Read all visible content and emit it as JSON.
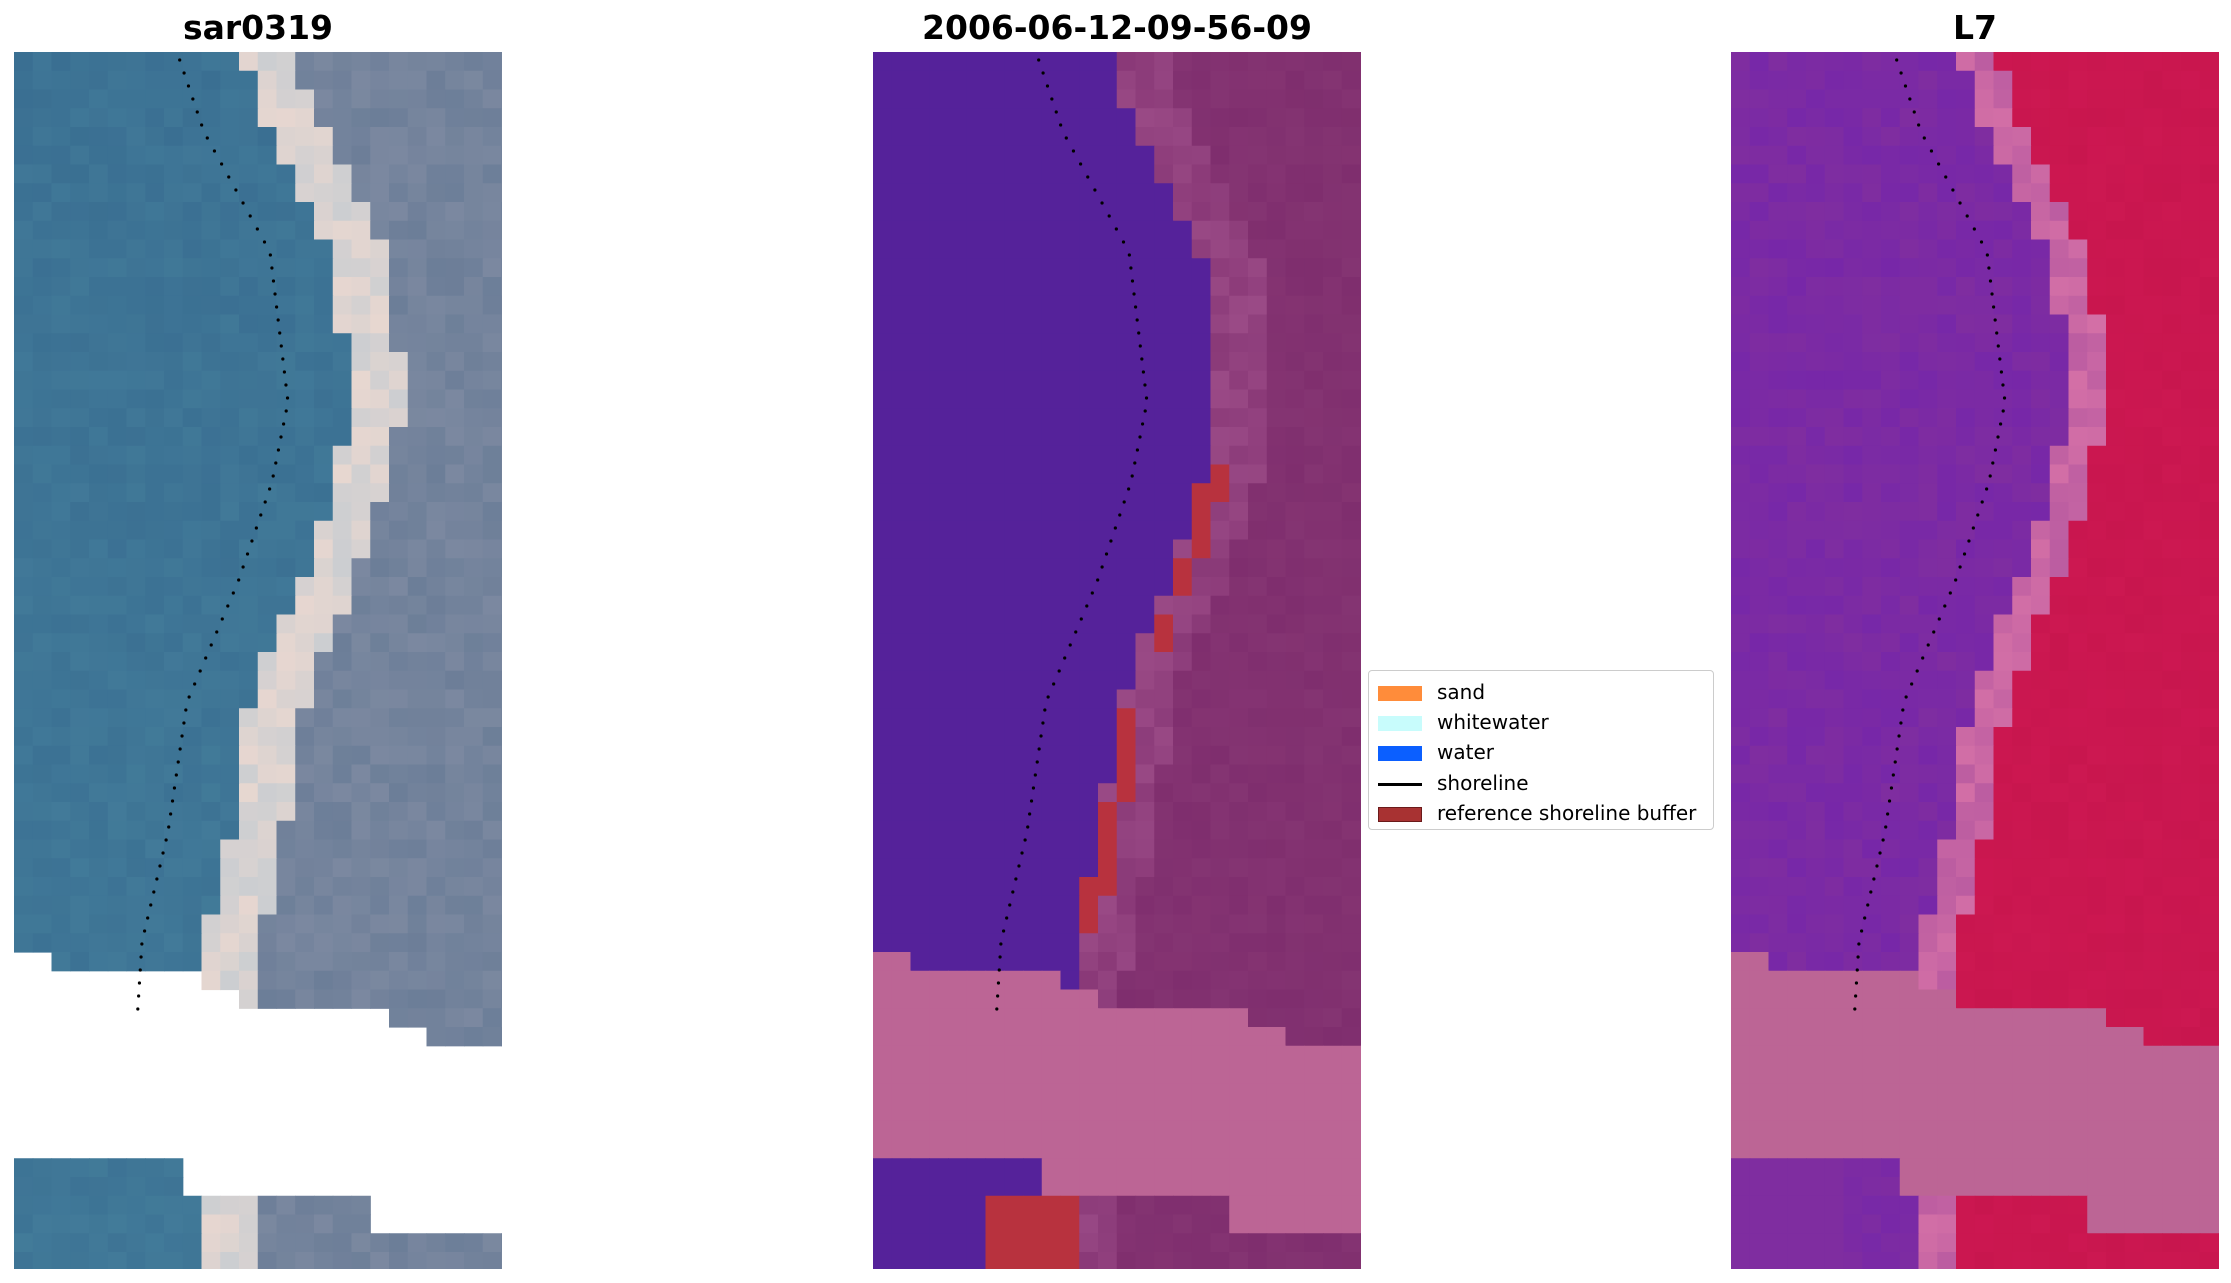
{
  "panels": [
    {
      "title": "sar0319"
    },
    {
      "title": "2006-06-12-09-56-09"
    },
    {
      "title": "L7"
    }
  ],
  "legend": [
    {
      "label": "sand",
      "kind": "patch",
      "color": "#ff8c3a",
      "border": "#ff8c3a"
    },
    {
      "label": "whitewater",
      "kind": "patch",
      "color": "#c8fcfc",
      "border": "#c8fcfc"
    },
    {
      "label": "water",
      "kind": "patch",
      "color": "#0b5fff",
      "border": "#0b5fff"
    },
    {
      "label": "shoreline",
      "kind": "line",
      "color": "#000000"
    },
    {
      "label": "reference shoreline buffer",
      "kind": "patch",
      "color": "#a83232",
      "border": "#6b1a1a"
    }
  ],
  "colors": {
    "rgb_water": "#3a6f92",
    "rgb_sand": "#e8d7d0",
    "rgb_land": "#6c7e98",
    "class_water": "#55229a",
    "class_land": "#7f2e6e",
    "class_nodata": "#bc6595",
    "class_buffer": "#b8323e",
    "index_water": "#7f2da0",
    "index_land": "#c8164e",
    "index_nodata": "#bc6595"
  }
}
